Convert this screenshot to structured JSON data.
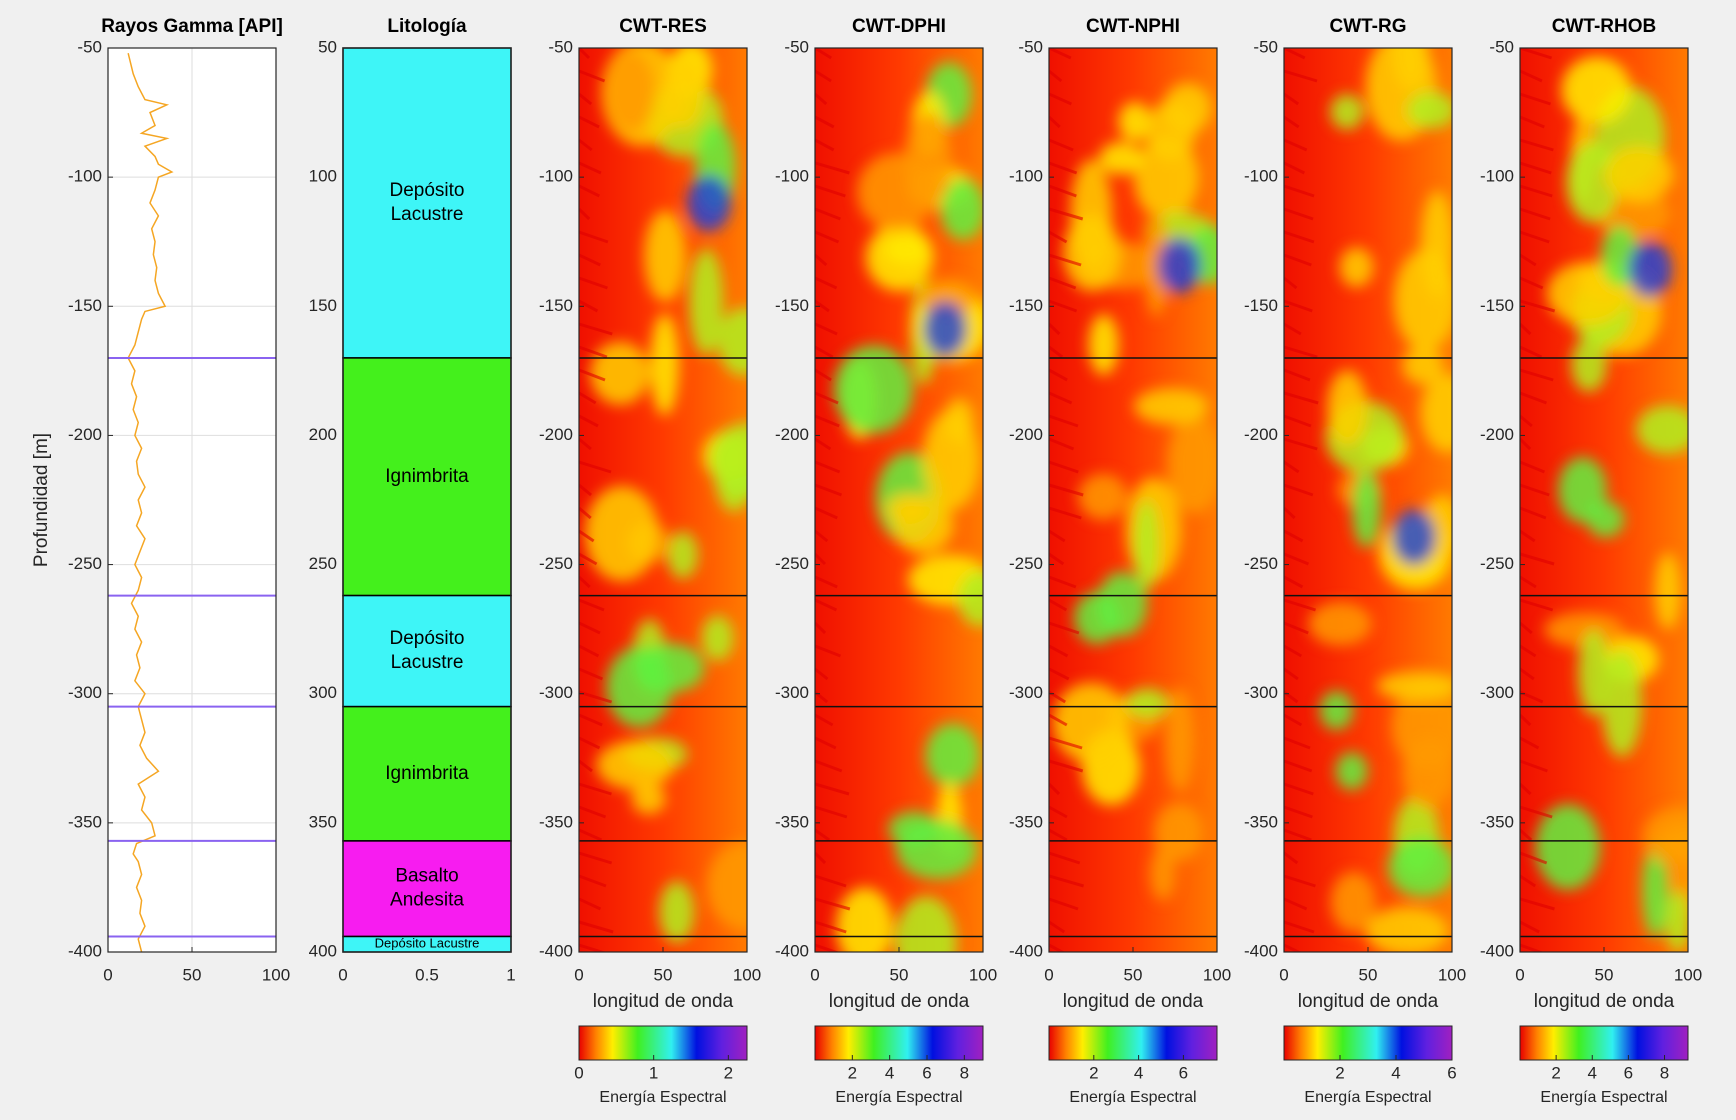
{
  "chart_data": [
    {
      "type": "line",
      "title": "Rayos Gamma [API]",
      "ylabel": "Profundidad [m]",
      "color": "#f5a623",
      "boundary_color": "#8a63f0",
      "grid": true,
      "xlim": [
        0,
        100
      ],
      "xticks": [
        0,
        50,
        100
      ],
      "ylim": [
        -400,
        -50
      ],
      "yticks": [
        -50,
        -100,
        -150,
        -200,
        -250,
        -300,
        -350,
        -400
      ],
      "depth": [
        -52,
        -60,
        -65,
        -70,
        -72,
        -75,
        -80,
        -83,
        -85,
        -88,
        -92,
        -95,
        -98,
        -100,
        -105,
        -110,
        -115,
        -120,
        -125,
        -130,
        -135,
        -140,
        -145,
        -150,
        -152,
        -155,
        -160,
        -165,
        -170,
        -175,
        -180,
        -185,
        -190,
        -195,
        -200,
        -205,
        -210,
        -215,
        -220,
        -225,
        -230,
        -235,
        -240,
        -245,
        -250,
        -255,
        -260,
        -265,
        -270,
        -275,
        -280,
        -285,
        -290,
        -295,
        -300,
        -305,
        -310,
        -315,
        -320,
        -325,
        -330,
        -335,
        -340,
        -345,
        -350,
        -355,
        -358,
        -362,
        -365,
        -370,
        -375,
        -380,
        -385,
        -390,
        -395,
        -400
      ],
      "values": [
        12,
        15,
        18,
        22,
        35,
        25,
        28,
        20,
        35,
        22,
        28,
        30,
        38,
        30,
        28,
        25,
        30,
        26,
        28,
        27,
        29,
        28,
        30,
        34,
        22,
        20,
        18,
        16,
        12,
        16,
        14,
        17,
        15,
        18,
        16,
        20,
        17,
        18,
        22,
        18,
        20,
        17,
        22,
        19,
        16,
        20,
        18,
        14,
        18,
        16,
        20,
        17,
        19,
        16,
        22,
        18,
        20,
        22,
        19,
        23,
        30,
        18,
        22,
        20,
        26,
        28,
        17,
        15,
        18,
        20,
        17,
        20,
        19,
        22,
        18,
        20
      ],
      "boundaries": [
        -170,
        -262,
        -305,
        -357,
        -394
      ]
    },
    {
      "type": "column",
      "title": "Litología",
      "xlim": [
        0,
        1
      ],
      "xticks": [
        0,
        0.5,
        1
      ],
      "ylim": [
        400,
        50
      ],
      "yticks": [
        50,
        100,
        150,
        200,
        250,
        300,
        350,
        400
      ],
      "layers": [
        {
          "top": 50,
          "bottom": 170,
          "label": [
            "Depósito",
            "Lacustre"
          ],
          "color": "#3ef5f7"
        },
        {
          "top": 170,
          "bottom": 262,
          "label": [
            "Ignimbrita"
          ],
          "color": "#44f01c"
        },
        {
          "top": 262,
          "bottom": 305,
          "label": [
            "Depósito",
            "Lacustre"
          ],
          "color": "#3ef5f7"
        },
        {
          "top": 305,
          "bottom": 357,
          "label": [
            "Ignimbrita"
          ],
          "color": "#44f01c"
        },
        {
          "top": 357,
          "bottom": 394,
          "label": [
            "Basalto",
            "Andesita"
          ],
          "color": "#f71cf0"
        },
        {
          "top": 394,
          "bottom": 400,
          "label": [
            "Depósito Lacustre"
          ],
          "color": "#3ef5f7"
        }
      ]
    },
    {
      "type": "heatmap",
      "title": "CWT-RES",
      "xlabel": "longitud de onda",
      "xlim": [
        0,
        100
      ],
      "xticks": [
        0,
        50,
        100
      ],
      "ylim": [
        -400,
        -50
      ],
      "yticks": [
        -50,
        -100,
        -150,
        -200,
        -250,
        -300,
        -350,
        -400
      ],
      "boundaries": [
        -170,
        -262,
        -305,
        -357,
        -394
      ],
      "colorbar": {
        "label": "Energía Espectral",
        "clim": [
          0,
          2.25
        ],
        "ticks": [
          0,
          1,
          2
        ]
      }
    },
    {
      "type": "heatmap",
      "title": "CWT-DPHI",
      "xlabel": "longitud de onda",
      "xlim": [
        0,
        100
      ],
      "xticks": [
        0,
        50,
        100
      ],
      "ylim": [
        -400,
        -50
      ],
      "yticks": [
        -50,
        -100,
        -150,
        -200,
        -250,
        -300,
        -350,
        -400
      ],
      "boundaries": [
        -170,
        -262,
        -305,
        -357,
        -394
      ],
      "colorbar": {
        "label": "Energía Espectral",
        "clim": [
          0,
          9
        ],
        "ticks": [
          2,
          4,
          6,
          8
        ]
      }
    },
    {
      "type": "heatmap",
      "title": "CWT-NPHI",
      "xlabel": "longitud de onda",
      "xlim": [
        0,
        100
      ],
      "xticks": [
        0,
        50,
        100
      ],
      "ylim": [
        -400,
        -50
      ],
      "yticks": [
        -50,
        -100,
        -150,
        -200,
        -250,
        -300,
        -350,
        -400
      ],
      "boundaries": [
        -170,
        -262,
        -305,
        -357,
        -394
      ],
      "colorbar": {
        "label": "Energía Espectral",
        "clim": [
          0,
          7.5
        ],
        "ticks": [
          2,
          4,
          6
        ]
      }
    },
    {
      "type": "heatmap",
      "title": "CWT-RG",
      "xlabel": "longitud de onda",
      "xlim": [
        0,
        100
      ],
      "xticks": [
        0,
        50,
        100
      ],
      "ylim": [
        -400,
        -50
      ],
      "yticks": [
        -50,
        -100,
        -150,
        -200,
        -250,
        -300,
        -350,
        -400
      ],
      "boundaries": [
        -170,
        -262,
        -305,
        -357,
        -394
      ],
      "colorbar": {
        "label": "Energía Espectral",
        "clim": [
          0,
          6
        ],
        "ticks": [
          2,
          4,
          6
        ]
      }
    },
    {
      "type": "heatmap",
      "title": "CWT-RHOB",
      "xlabel": "longitud de onda",
      "xlim": [
        0,
        100
      ],
      "xticks": [
        0,
        50,
        100
      ],
      "ylim": [
        -400,
        -50
      ],
      "yticks": [
        -50,
        -100,
        -150,
        -200,
        -250,
        -300,
        -350,
        -400
      ],
      "boundaries": [
        -170,
        -262,
        -305,
        -357,
        -394
      ],
      "colorbar": {
        "label": "Energía Espectral",
        "clim": [
          0,
          9.3
        ],
        "ticks": [
          2,
          4,
          6,
          8
        ]
      }
    }
  ]
}
